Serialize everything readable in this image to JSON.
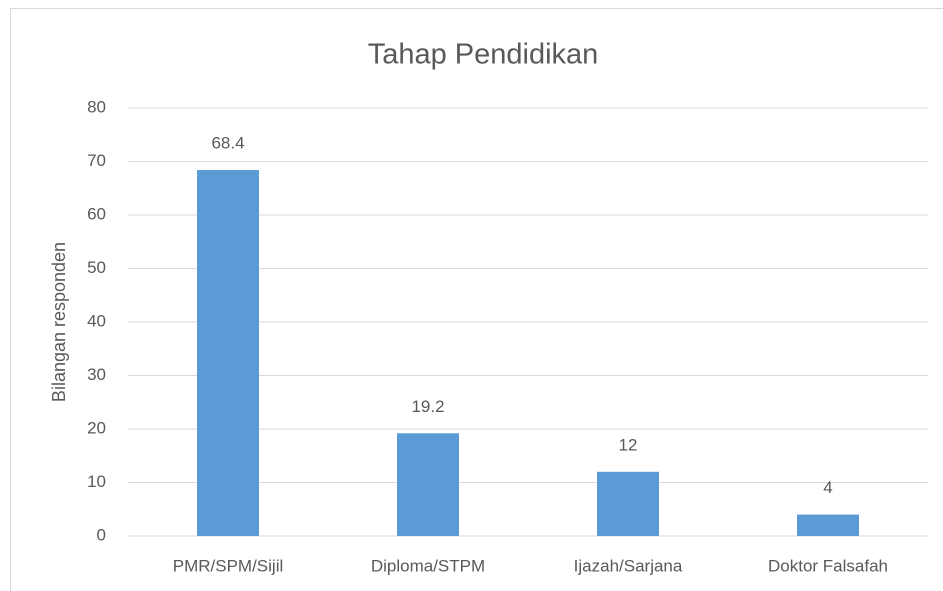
{
  "chart_data": {
    "type": "bar",
    "title": "Tahap Pendidikan",
    "y_label": "Bilangan responden",
    "categories": [
      "PMR/SPM/Sijil",
      "Diploma/STPM",
      "Ijazah/Sarjana",
      "Doktor Falsafah"
    ],
    "values": [
      68.4,
      19.2,
      12,
      4
    ],
    "color": "#5b9bd5",
    "ylim": [
      0,
      80
    ],
    "yticks": [
      0,
      10,
      20,
      30,
      40,
      50,
      60,
      70,
      80
    ],
    "grid": true
  }
}
